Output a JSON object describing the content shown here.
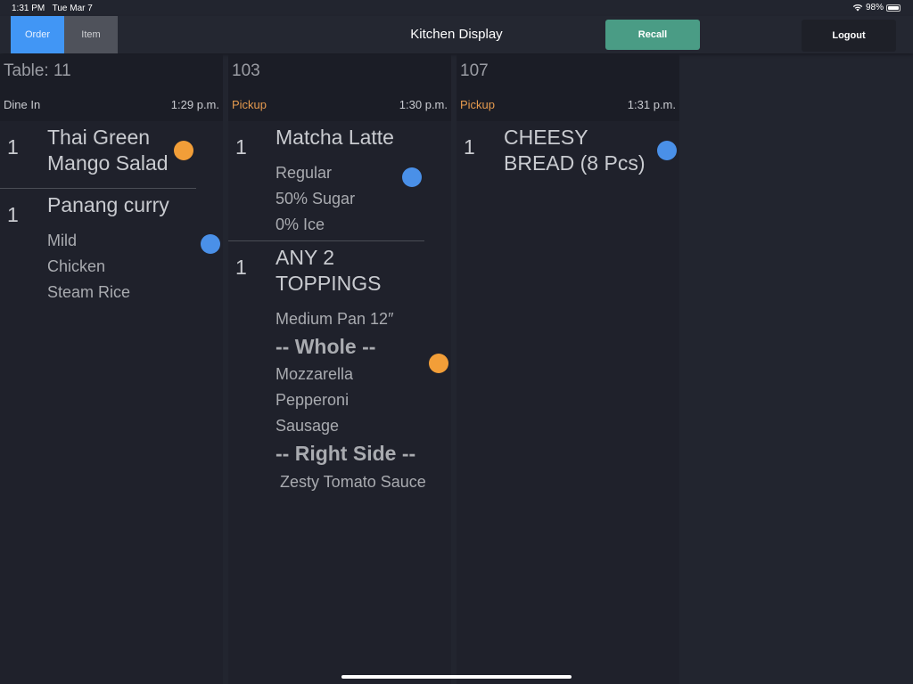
{
  "status_bar": {
    "time": "1:31 PM",
    "date": "Tue Mar 7",
    "battery": "98%",
    "battery_level": 0.98,
    "wifi_icon": "wifi-icon"
  },
  "header": {
    "tabs": [
      {
        "label": "Order",
        "active": true
      },
      {
        "label": "Item",
        "active": false
      }
    ],
    "title": "Kitchen Display",
    "recall_label": "Recall",
    "logout_label": "Logout"
  },
  "colors": {
    "accent": "#4196f5",
    "recall": "#4a9c85",
    "pickup": "#e59a4e",
    "dot_orange": "#f29e38",
    "dot_blue": "#4a90e8"
  },
  "tickets": [
    {
      "number": "Table: 11",
      "type": "Dine In",
      "time": "1:29 p.m.",
      "items": [
        {
          "qty": "1",
          "name": "Thai Green Mango Salad",
          "status": "orange",
          "mods": []
        },
        {
          "qty": "1",
          "name": "Panang curry",
          "status": "blue",
          "mods": [
            {
              "text": "Mild"
            },
            {
              "text": "Chicken"
            },
            {
              "text": "Steam Rice"
            }
          ]
        }
      ]
    },
    {
      "number": "103",
      "type": "Pickup",
      "time": "1:30 p.m.",
      "items": [
        {
          "qty": "1",
          "name": "Matcha Latte",
          "status": "blue",
          "mods": [
            {
              "text": "Regular"
            },
            {
              "text": "50% Sugar"
            },
            {
              "text": "0% Ice"
            }
          ]
        },
        {
          "qty": "1",
          "name": "ANY 2 TOPPINGS",
          "status": "orange",
          "mods": [
            {
              "text": "Medium Pan 12″"
            },
            {
              "text": "-- Whole --",
              "section": true
            },
            {
              "text": "Mozzarella"
            },
            {
              "text": "Pepperoni"
            },
            {
              "text": "Sausage"
            },
            {
              "text": "-- Right Side --",
              "section": true
            },
            {
              "text": " Zesty Tomato Sauce"
            }
          ]
        }
      ]
    },
    {
      "number": "107",
      "type": "Pickup",
      "time": "1:31 p.m.",
      "items": [
        {
          "qty": "1",
          "name": "CHEESY BREAD (8 Pcs)",
          "status": "blue",
          "mods": []
        }
      ]
    }
  ]
}
